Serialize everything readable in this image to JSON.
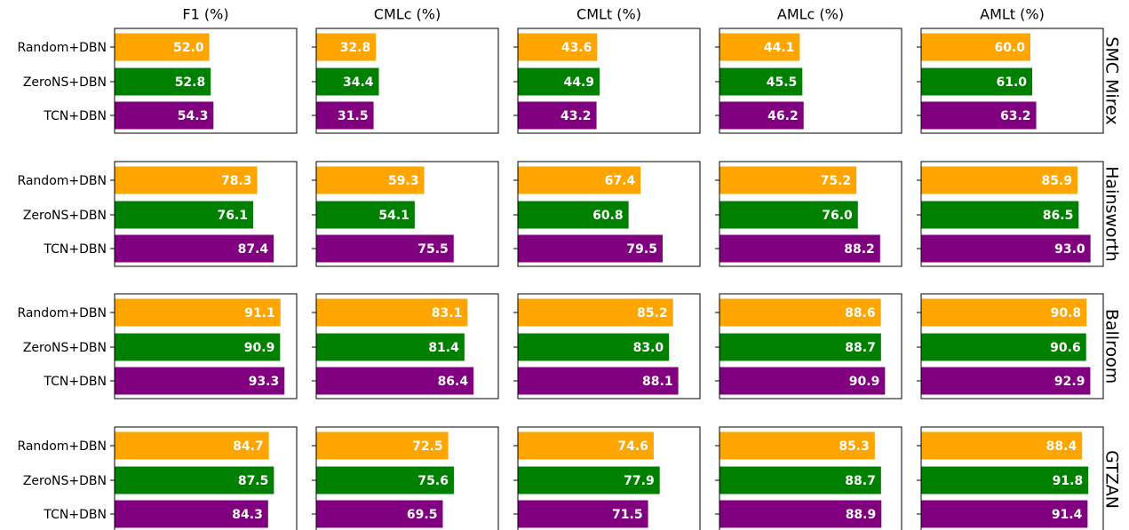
{
  "chart_data": {
    "type": "bar",
    "metrics": [
      "F1 (%)",
      "CMLc (%)",
      "CMLt (%)",
      "AMLc (%)",
      "AMLt (%)"
    ],
    "datasets": [
      "SMC Mirex",
      "Hainsworth",
      "Ballroom",
      "GTZAN"
    ],
    "categories": [
      "Random+DBN",
      "ZeroNS+DBN",
      "TCN+DBN"
    ],
    "colors": [
      "#ffa500",
      "#008000",
      "#800080"
    ],
    "xlim": [
      0,
      100
    ],
    "values": [
      [
        [
          52.0,
          52.8,
          54.3
        ],
        [
          32.8,
          34.4,
          31.5
        ],
        [
          43.6,
          44.9,
          43.2
        ],
        [
          44.1,
          45.5,
          46.2
        ],
        [
          60.0,
          61.0,
          63.2
        ]
      ],
      [
        [
          78.3,
          76.1,
          87.4
        ],
        [
          59.3,
          54.1,
          75.5
        ],
        [
          67.4,
          60.8,
          79.5
        ],
        [
          75.2,
          76.0,
          88.2
        ],
        [
          85.9,
          86.5,
          93.0
        ]
      ],
      [
        [
          91.1,
          90.9,
          93.3
        ],
        [
          83.1,
          81.4,
          86.4
        ],
        [
          85.2,
          83.0,
          88.1
        ],
        [
          88.6,
          88.7,
          90.9
        ],
        [
          90.8,
          90.6,
          92.9
        ]
      ],
      [
        [
          84.7,
          87.5,
          84.3
        ],
        [
          72.5,
          75.6,
          69.5
        ],
        [
          74.6,
          77.9,
          71.5
        ],
        [
          85.3,
          88.7,
          88.9
        ],
        [
          88.4,
          91.8,
          91.4
        ]
      ]
    ],
    "value_labels": [
      [
        [
          "52.0",
          "52.8",
          "54.3"
        ],
        [
          "32.8",
          "34.4",
          "31.5"
        ],
        [
          "43.6",
          "44.9",
          "43.2"
        ],
        [
          "44.1",
          "45.5",
          "46.2"
        ],
        [
          "60.0",
          "61.0",
          "63.2"
        ]
      ],
      [
        [
          "78.3",
          "76.1",
          "87.4"
        ],
        [
          "59.3",
          "54.1",
          "75.5"
        ],
        [
          "67.4",
          "60.8",
          "79.5"
        ],
        [
          "75.2",
          "76.0",
          "88.2"
        ],
        [
          "85.9",
          "86.5",
          "93.0"
        ]
      ],
      [
        [
          "91.1",
          "90.9",
          "93.3"
        ],
        [
          "83.1",
          "81.4",
          "86.4"
        ],
        [
          "85.2",
          "83.0",
          "88.1"
        ],
        [
          "88.6",
          "88.7",
          "90.9"
        ],
        [
          "90.8",
          "90.6",
          "92.9"
        ]
      ],
      [
        [
          "84.7",
          "87.5",
          "84.3"
        ],
        [
          "72.5",
          "75.6",
          "69.5"
        ],
        [
          "74.6",
          "77.9",
          "71.5"
        ],
        [
          "85.3",
          "88.7",
          "88.9"
        ],
        [
          "88.4",
          "91.8",
          "91.4"
        ]
      ]
    ]
  }
}
